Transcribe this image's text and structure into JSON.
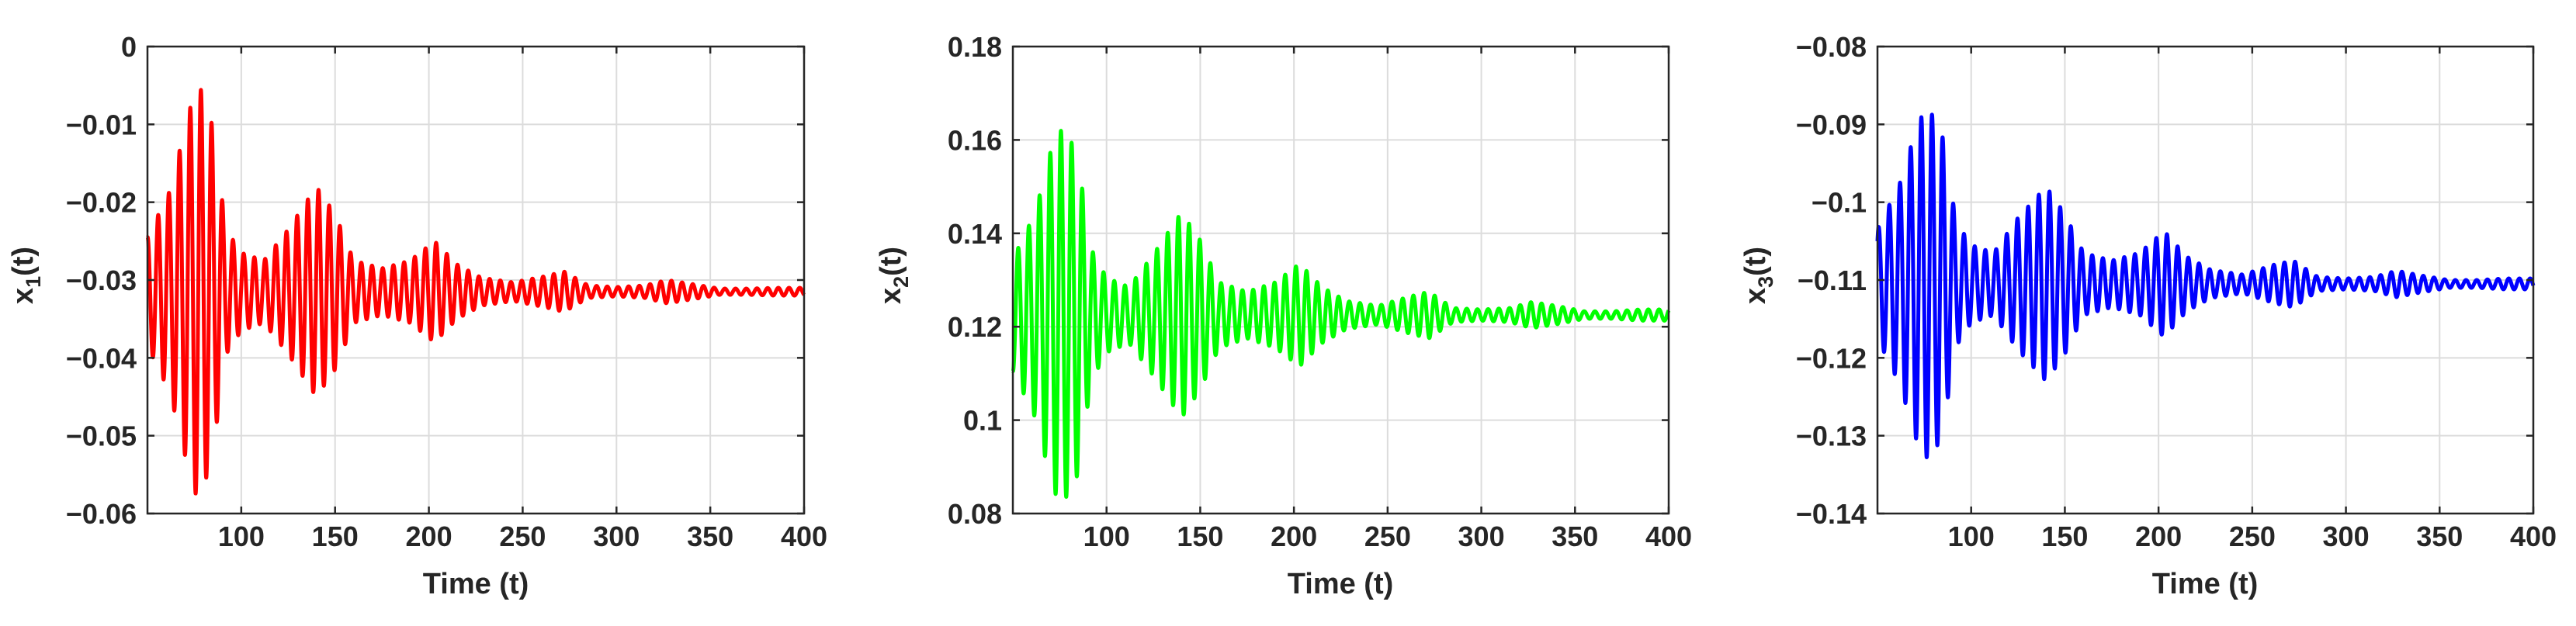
{
  "figure": {
    "panels": [
      {
        "id": "x1",
        "ylabel_main": "x",
        "ylabel_sub": "1",
        "ylabel_tail": "(t)",
        "xlabel": "Time (t)"
      },
      {
        "id": "x2",
        "ylabel_main": "x",
        "ylabel_sub": "2",
        "ylabel_tail": "(t)",
        "xlabel": "Time (t)"
      },
      {
        "id": "x3",
        "ylabel_main": "x",
        "ylabel_sub": "3",
        "ylabel_tail": "(t)",
        "xlabel": "Time (t)"
      }
    ]
  },
  "chart_data": [
    {
      "type": "line",
      "title": "",
      "xlabel": "Time (t)",
      "ylabel": "x1(t)",
      "xlim": [
        50,
        400
      ],
      "ylim": [
        -0.06,
        0
      ],
      "xticks": [
        100,
        150,
        200,
        250,
        300,
        350,
        400
      ],
      "yticks": [
        -0.06,
        -0.05,
        -0.04,
        -0.03,
        -0.02,
        -0.01,
        0
      ],
      "ytick_labels": [
        "−0.06",
        "−0.05",
        "−0.04",
        "−0.03",
        "−0.02",
        "−0.01",
        "0"
      ],
      "grid": true,
      "line_color": "#ff0000",
      "series": [
        {
          "equilibrium": -0.0315,
          "start_value": -0.024,
          "period": 5.7,
          "envelope": [
            [
              50,
              0.007
            ],
            [
              62,
              0.013
            ],
            [
              72,
              0.023
            ],
            [
              77,
              0.027
            ],
            [
              84,
              0.022
            ],
            [
              92,
              0.008
            ],
            [
              100,
              0.005
            ],
            [
              112,
              0.004
            ],
            [
              125,
              0.008
            ],
            [
              140,
              0.0135
            ],
            [
              150,
              0.01
            ],
            [
              160,
              0.004
            ],
            [
              175,
              0.003
            ],
            [
              190,
              0.004
            ],
            [
              203,
              0.0065
            ],
            [
              215,
              0.0035
            ],
            [
              228,
              0.0018
            ],
            [
              245,
              0.0012
            ],
            [
              262,
              0.002
            ],
            [
              272,
              0.0026
            ],
            [
              285,
              0.0008
            ],
            [
              300,
              0.0006
            ],
            [
              315,
              0.0008
            ],
            [
              327,
              0.0015
            ],
            [
              340,
              0.001
            ],
            [
              355,
              0.0004
            ],
            [
              370,
              0.0004
            ],
            [
              385,
              0.0005
            ],
            [
              400,
              0.0005
            ]
          ]
        }
      ]
    },
    {
      "type": "line",
      "title": "",
      "xlabel": "Time (t)",
      "ylabel": "x2(t)",
      "xlim": [
        50,
        400
      ],
      "ylim": [
        0.08,
        0.18
      ],
      "xticks": [
        100,
        150,
        200,
        250,
        300,
        350,
        400
      ],
      "yticks": [
        0.08,
        0.1,
        0.12,
        0.14,
        0.16,
        0.18
      ],
      "ytick_labels": [
        "0.08",
        "0.1",
        "0.12",
        "0.14",
        "0.16",
        "0.18"
      ],
      "grid": true,
      "line_color": "#00ff00",
      "series": [
        {
          "equilibrium": 0.1225,
          "start_value": 0.11,
          "period": 5.7,
          "envelope": [
            [
              50,
              0.012
            ],
            [
              62,
              0.022
            ],
            [
              72,
              0.038
            ],
            [
              77,
              0.04
            ],
            [
              84,
              0.035
            ],
            [
              92,
              0.014
            ],
            [
              100,
              0.008
            ],
            [
              112,
              0.006
            ],
            [
              125,
              0.013
            ],
            [
              140,
              0.022
            ],
            [
              150,
              0.016
            ],
            [
              160,
              0.007
            ],
            [
              175,
              0.005
            ],
            [
              190,
              0.007
            ],
            [
              203,
              0.011
            ],
            [
              215,
              0.006
            ],
            [
              228,
              0.003
            ],
            [
              245,
              0.002
            ],
            [
              262,
              0.004
            ],
            [
              272,
              0.005
            ],
            [
              285,
              0.0015
            ],
            [
              300,
              0.0012
            ],
            [
              315,
              0.0015
            ],
            [
              327,
              0.0028
            ],
            [
              340,
              0.002
            ],
            [
              355,
              0.0008
            ],
            [
              370,
              0.0008
            ],
            [
              385,
              0.0012
            ],
            [
              400,
              0.0012
            ]
          ]
        }
      ]
    },
    {
      "type": "line",
      "title": "",
      "xlabel": "Time (t)",
      "ylabel": "x3(t)",
      "xlim": [
        50,
        400
      ],
      "ylim": [
        -0.14,
        -0.08
      ],
      "xticks": [
        100,
        150,
        200,
        250,
        300,
        350,
        400
      ],
      "yticks": [
        -0.14,
        -0.13,
        -0.12,
        -0.11,
        -0.1,
        -0.09,
        -0.08
      ],
      "ytick_labels": [
        "−0.14",
        "−0.13",
        "−0.12",
        "−0.11",
        "−0.1",
        "−0.09",
        "−0.08"
      ],
      "grid": true,
      "line_color": "#0000ff",
      "series": [
        {
          "equilibrium": -0.1105,
          "start_value": -0.105,
          "period": 5.7,
          "envelope": [
            [
              50,
              0.007
            ],
            [
              62,
              0.013
            ],
            [
              72,
              0.021
            ],
            [
              77,
              0.0225
            ],
            [
              84,
              0.02
            ],
            [
              92,
              0.008
            ],
            [
              100,
              0.005
            ],
            [
              112,
              0.004
            ],
            [
              125,
              0.0085
            ],
            [
              140,
              0.0125
            ],
            [
              150,
              0.009
            ],
            [
              160,
              0.004
            ],
            [
              175,
              0.003
            ],
            [
              190,
              0.004
            ],
            [
              203,
              0.0068
            ],
            [
              215,
              0.0035
            ],
            [
              228,
              0.0018
            ],
            [
              245,
              0.0012
            ],
            [
              262,
              0.0025
            ],
            [
              272,
              0.003
            ],
            [
              285,
              0.0009
            ],
            [
              300,
              0.0007
            ],
            [
              315,
              0.0009
            ],
            [
              327,
              0.0017
            ],
            [
              340,
              0.0011
            ],
            [
              355,
              0.0005
            ],
            [
              370,
              0.0005
            ],
            [
              385,
              0.0007
            ],
            [
              400,
              0.0007
            ]
          ]
        }
      ]
    }
  ]
}
